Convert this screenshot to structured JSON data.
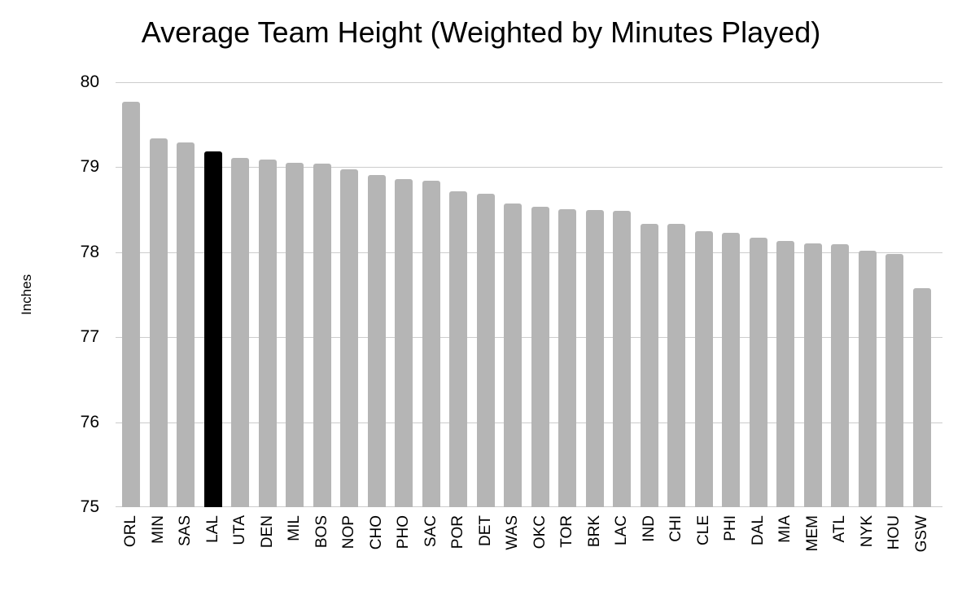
{
  "chart_data": {
    "type": "bar",
    "title": "Average Team Height (Weighted by Minutes Played)",
    "xlabel": "",
    "ylabel": "Inches",
    "ylim": [
      75,
      80
    ],
    "yticks": [
      80,
      79,
      78,
      77,
      76,
      75
    ],
    "grid": "horizontal",
    "legend": "none",
    "categories": [
      "ORL",
      "MIN",
      "SAS",
      "LAL",
      "UTA",
      "DEN",
      "MIL",
      "BOS",
      "NOP",
      "CHO",
      "PHO",
      "SAC",
      "POR",
      "DET",
      "WAS",
      "OKC",
      "TOR",
      "BRK",
      "LAC",
      "IND",
      "CHI",
      "CLE",
      "PHI",
      "DAL",
      "MIA",
      "MEM",
      "ATL",
      "NYK",
      "HOU",
      "GSW"
    ],
    "values": [
      79.77,
      79.34,
      79.29,
      79.19,
      79.11,
      79.09,
      79.05,
      79.04,
      78.98,
      78.91,
      78.86,
      78.84,
      78.72,
      78.69,
      78.57,
      78.53,
      78.51,
      78.5,
      78.49,
      78.33,
      78.33,
      78.25,
      78.23,
      78.17,
      78.13,
      78.1,
      78.09,
      78.02,
      77.98,
      77.58
    ],
    "highlight_category": "LAL",
    "colors": {
      "bar": "#b5b5b5",
      "highlight": "#000000",
      "gridline": "#cccccc",
      "text": "#000000"
    }
  }
}
